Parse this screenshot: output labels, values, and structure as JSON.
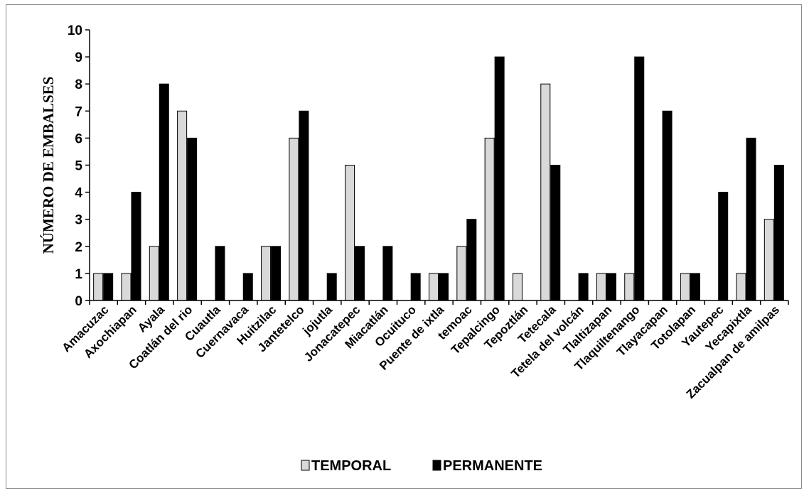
{
  "chart_data": {
    "type": "bar",
    "ylabel": "NÚMERO DE EMBALSES",
    "xlabel": "",
    "ylim": [
      0,
      10
    ],
    "yticks": [
      "0",
      "1",
      "2",
      "3",
      "4",
      "5",
      "6",
      "7",
      "8",
      "9",
      "10"
    ],
    "grid": false,
    "legend_position": "bottom",
    "categories": [
      "Amacuzac",
      "Axochiapan",
      "Ayala",
      "Coatlán del rio",
      "Cuautla",
      "Cuernavaca",
      "Huitzilac",
      "Jantetelco",
      "jojutla",
      "Jonacatepec",
      "Miacatlán",
      "Ocuituco",
      "Puente de ixtla",
      "temoac",
      "Tepalcingo",
      "Tepoztlán",
      "Tetecala",
      "Tetela del volcán",
      "Tlaltizapan",
      "Tlaquiltenango",
      "Tlayacapan",
      "Totolapan",
      "Yautepec",
      "Yecapixtla",
      "Zacualpan de amilpas"
    ],
    "series": [
      {
        "name": "TEMPORAL",
        "color": "#d9d9d9",
        "values": [
          1,
          1,
          2,
          7,
          0,
          0,
          2,
          6,
          0,
          5,
          0,
          0,
          1,
          2,
          6,
          1,
          8,
          0,
          1,
          1,
          0,
          1,
          0,
          1,
          3
        ]
      },
      {
        "name": "PERMANENTE",
        "color": "#000000",
        "values": [
          1,
          4,
          8,
          6,
          2,
          1,
          2,
          7,
          1,
          2,
          2,
          1,
          1,
          3,
          9,
          0,
          5,
          1,
          1,
          9,
          7,
          1,
          4,
          6,
          5
        ]
      }
    ]
  }
}
